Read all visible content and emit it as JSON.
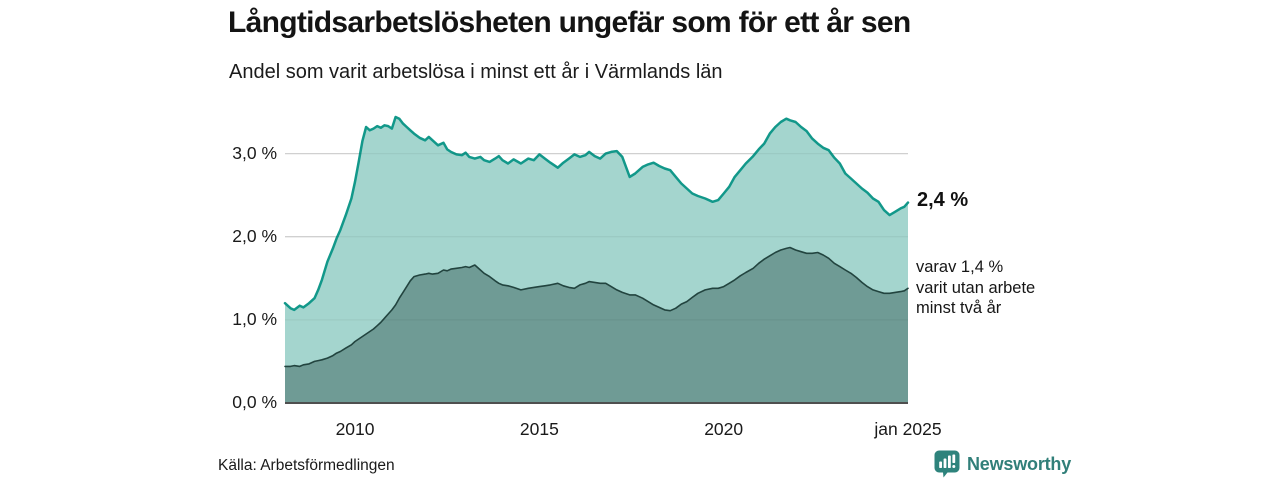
{
  "branding": {
    "name": "Newsworthy",
    "icon": "newsworthy-bars-icon",
    "color": "#317f79"
  },
  "chart_data": {
    "type": "area",
    "title": "Långtidsarbetslösheten ungefär som för ett år sen",
    "subtitle": "Andel som varit arbetslösa i minst ett år i Värmlands län",
    "source": "Källa: Arbetsförmedlingen",
    "unit": "%",
    "grid": "horizontal",
    "xlim": [
      2008.1,
      2025.0
    ],
    "ylim": [
      0,
      3.5
    ],
    "x_ticks": [
      {
        "v": 2010,
        "label": "2010"
      },
      {
        "v": 2015,
        "label": "2015"
      },
      {
        "v": 2020,
        "label": "2020"
      },
      {
        "v": 2025.0,
        "label": "jan 2025"
      }
    ],
    "y_ticks": [
      {
        "v": 3.0,
        "label": "3,0 %"
      },
      {
        "v": 2.0,
        "label": "2,0 %"
      },
      {
        "v": 1.0,
        "label": "1,0 %"
      },
      {
        "v": 0.0,
        "label": "0,0 %"
      }
    ],
    "annotations": {
      "latest_label": "2,4 %",
      "secondary_lines": [
        "varav 1,4 %",
        "varit utan arbete",
        "minst två år"
      ]
    },
    "x": [
      2008.1,
      2008.25,
      2008.35,
      2008.5,
      2008.6,
      2008.75,
      2008.9,
      2009.0,
      2009.1,
      2009.25,
      2009.4,
      2009.5,
      2009.6,
      2009.75,
      2009.9,
      2010.0,
      2010.1,
      2010.2,
      2010.3,
      2010.4,
      2010.5,
      2010.6,
      2010.7,
      2010.8,
      2010.9,
      2011.0,
      2011.1,
      2011.2,
      2011.3,
      2011.4,
      2011.5,
      2011.6,
      2011.75,
      2011.9,
      2012.0,
      2012.1,
      2012.25,
      2012.4,
      2012.5,
      2012.6,
      2012.75,
      2012.9,
      2013.0,
      2013.1,
      2013.25,
      2013.4,
      2013.5,
      2013.65,
      2013.8,
      2013.9,
      2014.0,
      2014.15,
      2014.3,
      2014.5,
      2014.7,
      2014.85,
      2015.0,
      2015.15,
      2015.3,
      2015.5,
      2015.65,
      2015.8,
      2015.95,
      2016.1,
      2016.25,
      2016.35,
      2016.5,
      2016.65,
      2016.8,
      2016.95,
      2017.1,
      2017.25,
      2017.45,
      2017.6,
      2017.8,
      2017.95,
      2018.1,
      2018.25,
      2018.4,
      2018.55,
      2018.7,
      2018.85,
      2019.0,
      2019.15,
      2019.3,
      2019.5,
      2019.7,
      2019.85,
      2020.0,
      2020.15,
      2020.3,
      2020.45,
      2020.6,
      2020.8,
      2020.95,
      2021.1,
      2021.25,
      2021.4,
      2021.55,
      2021.7,
      2021.8,
      2021.95,
      2022.1,
      2022.25,
      2022.4,
      2022.55,
      2022.7,
      2022.85,
      2023.0,
      2023.15,
      2023.3,
      2023.45,
      2023.6,
      2023.75,
      2023.9,
      2024.05,
      2024.2,
      2024.35,
      2024.5,
      2024.65,
      2024.8,
      2024.9,
      2025.0
    ],
    "series": [
      {
        "name": "Arbetslösa minst ett år",
        "stroke": "#12988a",
        "fill": "#a4d5ce",
        "stroke_width": 2.5,
        "values": [
          1.2,
          1.14,
          1.12,
          1.17,
          1.15,
          1.2,
          1.26,
          1.36,
          1.48,
          1.7,
          1.86,
          1.98,
          2.08,
          2.26,
          2.46,
          2.66,
          2.9,
          3.15,
          3.32,
          3.28,
          3.3,
          3.33,
          3.31,
          3.34,
          3.33,
          3.3,
          3.44,
          3.42,
          3.36,
          3.32,
          3.28,
          3.24,
          3.19,
          3.16,
          3.2,
          3.16,
          3.1,
          3.13,
          3.05,
          3.02,
          2.99,
          2.98,
          3.01,
          2.96,
          2.94,
          2.96,
          2.92,
          2.9,
          2.94,
          2.97,
          2.92,
          2.88,
          2.93,
          2.88,
          2.94,
          2.92,
          2.99,
          2.94,
          2.89,
          2.83,
          2.89,
          2.94,
          2.99,
          2.96,
          2.98,
          3.02,
          2.97,
          2.94,
          3.0,
          3.02,
          3.03,
          2.96,
          2.72,
          2.76,
          2.84,
          2.87,
          2.89,
          2.85,
          2.82,
          2.8,
          2.72,
          2.64,
          2.58,
          2.52,
          2.49,
          2.46,
          2.42,
          2.44,
          2.52,
          2.6,
          2.72,
          2.8,
          2.88,
          2.97,
          3.05,
          3.12,
          3.24,
          3.32,
          3.38,
          3.42,
          3.4,
          3.38,
          3.32,
          3.27,
          3.18,
          3.12,
          3.07,
          3.04,
          2.95,
          2.88,
          2.76,
          2.7,
          2.64,
          2.58,
          2.53,
          2.46,
          2.42,
          2.32,
          2.26,
          2.3,
          2.34,
          2.36,
          2.41
        ]
      },
      {
        "name": "varav utan arbete minst två år",
        "stroke": "#22443f",
        "fill": "#6f9b95",
        "stroke_width": 1.6,
        "values": [
          0.44,
          0.44,
          0.45,
          0.44,
          0.46,
          0.47,
          0.5,
          0.51,
          0.52,
          0.54,
          0.57,
          0.6,
          0.62,
          0.66,
          0.7,
          0.74,
          0.77,
          0.8,
          0.83,
          0.86,
          0.89,
          0.93,
          0.97,
          1.02,
          1.07,
          1.12,
          1.18,
          1.26,
          1.33,
          1.4,
          1.47,
          1.52,
          1.54,
          1.55,
          1.56,
          1.55,
          1.56,
          1.6,
          1.59,
          1.61,
          1.62,
          1.63,
          1.64,
          1.63,
          1.66,
          1.6,
          1.56,
          1.52,
          1.47,
          1.44,
          1.42,
          1.41,
          1.39,
          1.36,
          1.38,
          1.39,
          1.4,
          1.41,
          1.42,
          1.44,
          1.41,
          1.39,
          1.38,
          1.42,
          1.44,
          1.46,
          1.45,
          1.44,
          1.44,
          1.4,
          1.36,
          1.33,
          1.3,
          1.3,
          1.26,
          1.22,
          1.18,
          1.15,
          1.12,
          1.11,
          1.14,
          1.19,
          1.22,
          1.27,
          1.32,
          1.36,
          1.38,
          1.38,
          1.4,
          1.44,
          1.48,
          1.53,
          1.57,
          1.62,
          1.68,
          1.73,
          1.77,
          1.81,
          1.84,
          1.86,
          1.87,
          1.84,
          1.82,
          1.8,
          1.8,
          1.81,
          1.78,
          1.74,
          1.68,
          1.64,
          1.6,
          1.56,
          1.51,
          1.45,
          1.4,
          1.36,
          1.34,
          1.32,
          1.32,
          1.33,
          1.34,
          1.35,
          1.38
        ]
      }
    ]
  }
}
